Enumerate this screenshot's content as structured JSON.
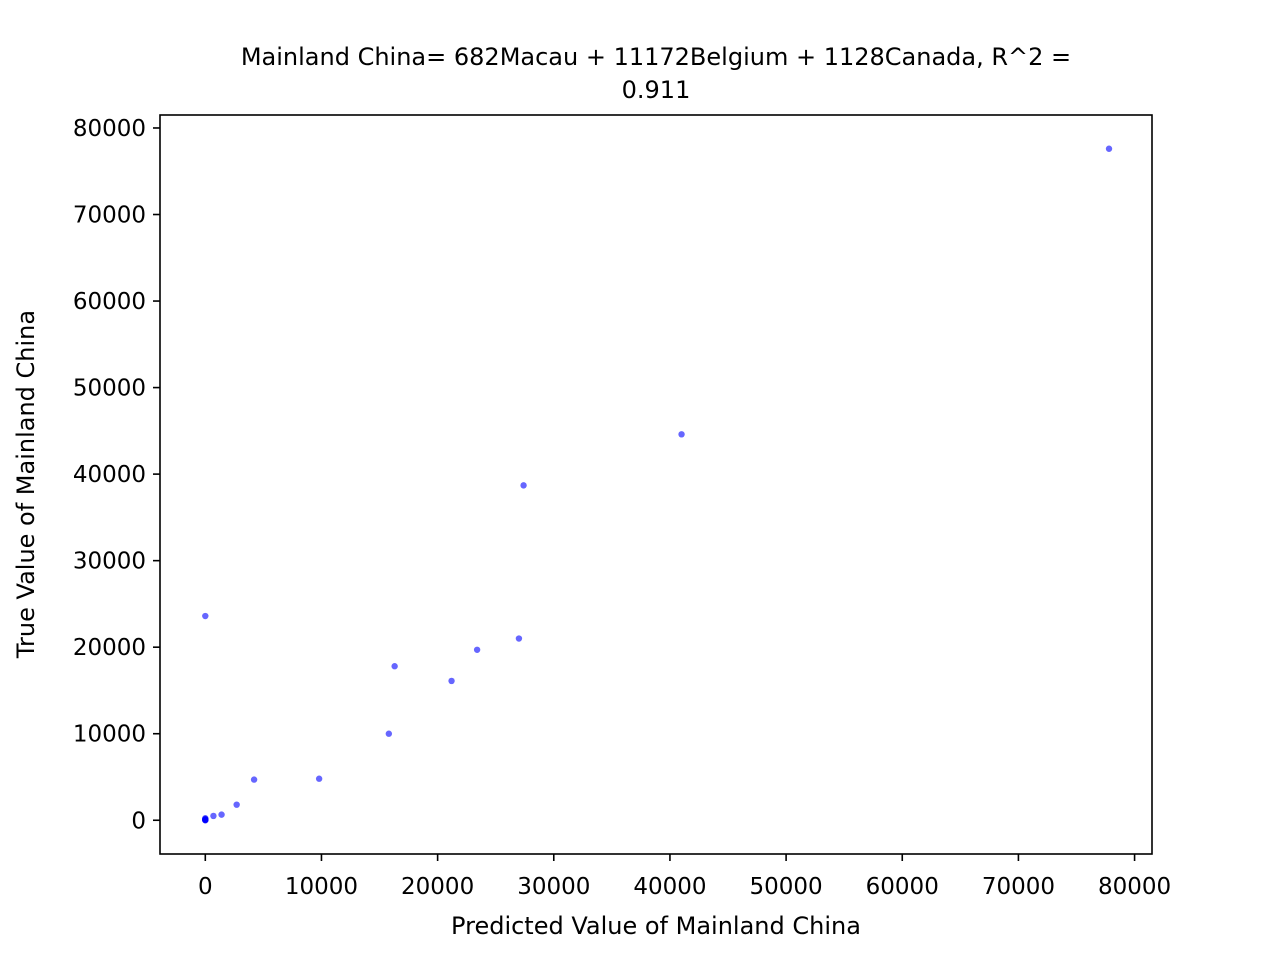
{
  "chart_data": {
    "type": "scatter",
    "title_line1": "Mainland China= 682Macau + 11172Belgium + 1128Canada, R^2 =",
    "title_line2": "0.911",
    "xlabel": "Predicted Value of Mainland China",
    "ylabel": "True Value of Mainland China",
    "xlim": [
      -3900,
      81500
    ],
    "ylim": [
      -3900,
      81500
    ],
    "x_ticks": [
      0,
      10000,
      20000,
      30000,
      40000,
      50000,
      60000,
      70000,
      80000
    ],
    "y_ticks": [
      0,
      10000,
      20000,
      30000,
      40000,
      50000,
      60000,
      70000,
      80000
    ],
    "x_tick_labels": [
      "0",
      "10000",
      "20000",
      "30000",
      "40000",
      "50000",
      "60000",
      "70000",
      "80000"
    ],
    "y_tick_labels": [
      "0",
      "10000",
      "20000",
      "30000",
      "40000",
      "50000",
      "60000",
      "70000",
      "80000"
    ],
    "grid": false,
    "legend": "none",
    "marker_color": "#0000ff",
    "marker_opacity": 0.6,
    "points": [
      {
        "x": 0,
        "y": 0
      },
      {
        "x": 0,
        "y": 20
      },
      {
        "x": 0,
        "y": 40
      },
      {
        "x": 0,
        "y": 70
      },
      {
        "x": 0,
        "y": 100
      },
      {
        "x": 0,
        "y": 150
      },
      {
        "x": 0,
        "y": 230
      },
      {
        "x": 0,
        "y": 23600
      },
      {
        "x": 700,
        "y": 500
      },
      {
        "x": 1400,
        "y": 650
      },
      {
        "x": 2700,
        "y": 1800
      },
      {
        "x": 4200,
        "y": 4700
      },
      {
        "x": 9800,
        "y": 4800
      },
      {
        "x": 15800,
        "y": 10000
      },
      {
        "x": 16300,
        "y": 17800
      },
      {
        "x": 21200,
        "y": 16100
      },
      {
        "x": 23400,
        "y": 19700
      },
      {
        "x": 27000,
        "y": 21000
      },
      {
        "x": 27400,
        "y": 38700
      },
      {
        "x": 41000,
        "y": 44600
      },
      {
        "x": 77800,
        "y": 77600
      }
    ]
  }
}
